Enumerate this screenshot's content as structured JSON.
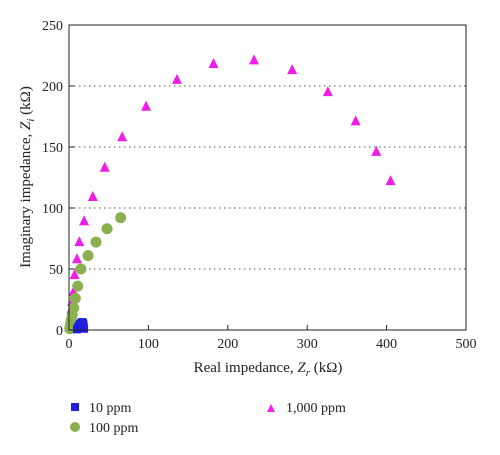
{
  "chart_data": {
    "type": "scatter",
    "xlabel": "Real impedance, Z_r (kΩ)",
    "ylabel": "Imaginary impedance, Z_i (kΩ)",
    "xlabel_parts": {
      "pre": "Real impedance, ",
      "var": "Z",
      "sub": "r",
      "post": " (kΩ)"
    },
    "ylabel_parts": {
      "pre": "Imaginary impedance, ",
      "var": "Z",
      "sub": "i",
      "post": " (kΩ)"
    },
    "xlim": [
      0,
      500
    ],
    "ylim": [
      0,
      250
    ],
    "xticks": [
      0,
      100,
      200,
      300,
      400,
      500
    ],
    "yticks": [
      0,
      50,
      100,
      150,
      200,
      250
    ],
    "grid": "horizontal dotted",
    "legend_position": "bottom",
    "series": [
      {
        "name": "10 ppm",
        "marker": "square",
        "color": "#1f1fe0",
        "x": [
          10.0,
          11.0,
          12.5,
          14.0,
          15.5,
          16.5,
          17.5,
          18.0,
          18.5,
          19.0
        ],
        "y": [
          0.5,
          2.0,
          3.5,
          5.0,
          6.0,
          6.5,
          6.0,
          5.0,
          3.0,
          1.0
        ]
      },
      {
        "name": "100 ppm",
        "marker": "circle",
        "color": "#8bb04f",
        "x": [
          1.0,
          1.5,
          2.0,
          3.0,
          4.0,
          6.0,
          8.0,
          11.0,
          15.0,
          24.0,
          34.0,
          48.0,
          65.0
        ],
        "y": [
          1.0,
          3.0,
          5.0,
          8.0,
          12.0,
          18.0,
          26.0,
          36.0,
          50.0,
          61.0,
          72.0,
          83.0,
          92.0
        ]
      },
      {
        "name": "1,000 ppm",
        "marker": "triangle",
        "color": "#ee1ee8",
        "x": [
          0.5,
          1.0,
          1.5,
          2.0,
          3.0,
          4.0,
          5.5,
          7.0,
          10.0,
          13.0,
          19.0,
          30.0,
          45.0,
          67.0,
          97.0,
          136.0,
          182.0,
          233.0,
          281.0,
          326.0,
          361.0,
          387.0,
          405.0
        ],
        "y": [
          2.0,
          5.0,
          8.0,
          12.0,
          17.0,
          23.0,
          31.0,
          45.0,
          58.0,
          72.0,
          89.0,
          109.0,
          133.0,
          158.0,
          183.0,
          205.0,
          218.0,
          221.0,
          213.0,
          195.0,
          171.0,
          146.0,
          122.0
        ]
      }
    ]
  }
}
